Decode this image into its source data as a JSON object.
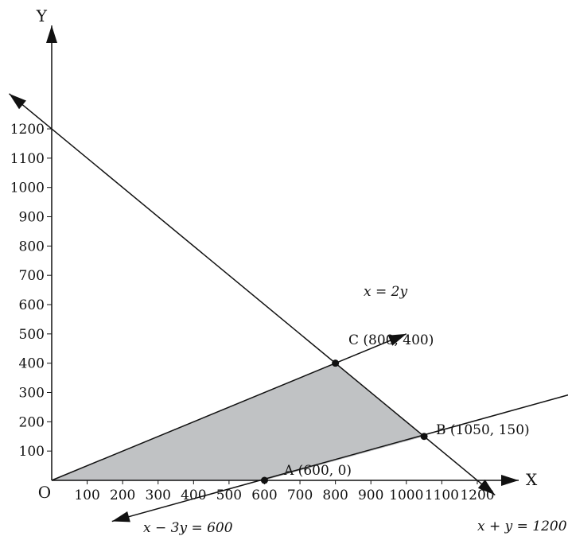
{
  "chart_data": {
    "type": "line",
    "title": "",
    "xlabel": "X",
    "ylabel": "Y",
    "origin_label": "O",
    "xlim": [
      0,
      1200
    ],
    "ylim": [
      0,
      1200
    ],
    "grid": false,
    "x_ticks": [
      "100",
      "200",
      "300",
      "400",
      "500",
      "600",
      "700",
      "800",
      "900",
      "1000",
      "1100",
      "1200"
    ],
    "x_tick_values": [
      100,
      200,
      300,
      400,
      500,
      600,
      700,
      800,
      900,
      1000,
      1100,
      1200
    ],
    "y_ticks": [
      "100",
      "200",
      "300",
      "400",
      "500",
      "600",
      "700",
      "800",
      "900",
      "1000",
      "1100",
      "1200"
    ],
    "y_tick_values": [
      100,
      200,
      300,
      400,
      500,
      600,
      700,
      800,
      900,
      1000,
      1100,
      1200
    ],
    "lines": [
      {
        "equation": "x + y = 1200",
        "from": [
          -120,
          1320
        ],
        "to": [
          1250,
          -50
        ]
      },
      {
        "equation": "x = 2y",
        "from": [
          0,
          0
        ],
        "to": [
          1000,
          500
        ]
      },
      {
        "equation": "x − 3y = 600",
        "from": [
          170,
          -140
        ],
        "to": [
          1720,
          380
        ]
      }
    ],
    "feasible_region": [
      [
        0,
        0
      ],
      [
        800,
        400
      ],
      [
        1050,
        150
      ],
      [
        600,
        0
      ]
    ],
    "points": [
      {
        "label": "A (600, 0)",
        "x": 600,
        "y": 0
      },
      {
        "label": "B (1050, 150)",
        "x": 1050,
        "y": 150
      },
      {
        "label": "C (800, 400)",
        "x": 800,
        "y": 400
      }
    ],
    "colors": {
      "region": "#c0c2c4",
      "ink": "#111111"
    }
  }
}
